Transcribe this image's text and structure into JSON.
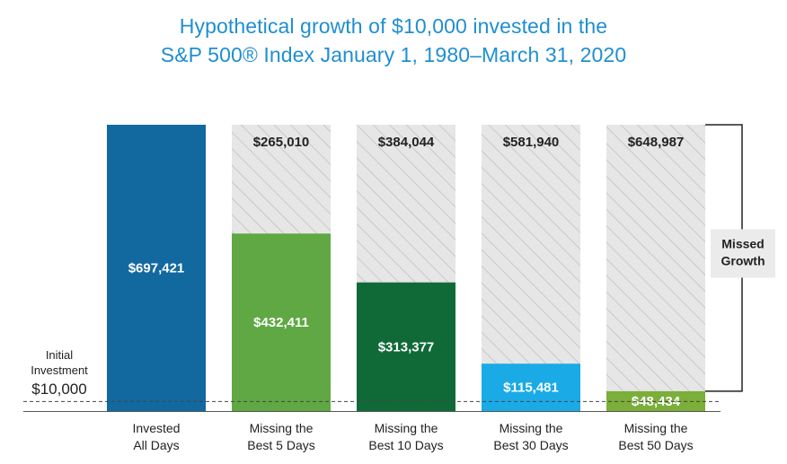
{
  "chart_data": {
    "type": "bar",
    "title_lines": [
      "Hypothetical growth of $10,000 invested in the",
      "S&P 500® Index January 1, 1980–March 31, 2020"
    ],
    "categories": [
      "Invested All Days",
      "Missing the Best 5 Days",
      "Missing the Best 10 Days",
      "Missing the Best 30 Days",
      "Missing the Best 50 Days"
    ],
    "category_lines": [
      [
        "Invested",
        "All Days"
      ],
      [
        "Missing the",
        "Best 5 Days"
      ],
      [
        "Missing the",
        "Best 10 Days"
      ],
      [
        "Missing the",
        "Best 30 Days"
      ],
      [
        "Missing the",
        "Best 50 Days"
      ]
    ],
    "values": [
      697421,
      432411,
      313377,
      115481,
      48434
    ],
    "value_labels": [
      "$697,421",
      "$432,411",
      "$313,377",
      "$115,481",
      "$48,434"
    ],
    "missed_values": [
      null,
      265010,
      384044,
      581940,
      648987
    ],
    "missed_labels": [
      "",
      "$265,010",
      "$384,044",
      "$581,940",
      "$648,987"
    ],
    "bar_colors": [
      "#1269a0",
      "#5fa843",
      "#0f6a38",
      "#1aabe6",
      "#7cae3a"
    ],
    "missed_fill": "#e6e6e6",
    "missed_hatch": "#bdbdbd",
    "ylim": [
      0,
      697421
    ],
    "initial_investment": {
      "label_lines": [
        "Initial",
        "Investment"
      ],
      "amount_label": "$10,000",
      "value": 10000
    },
    "bracket_label_lines": [
      "Missed",
      "Growth"
    ]
  }
}
